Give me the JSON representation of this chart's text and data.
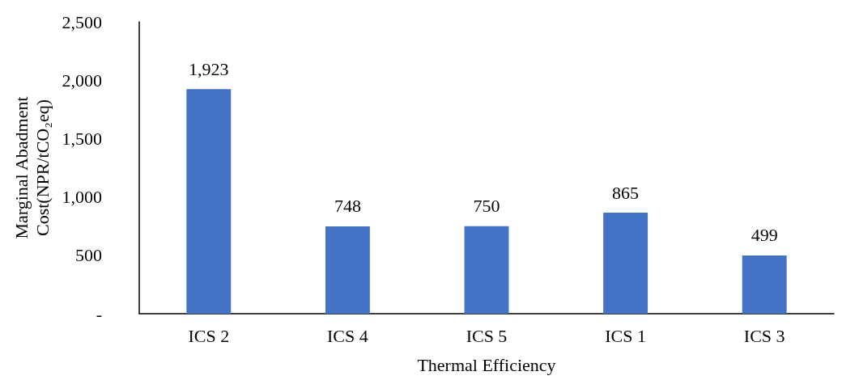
{
  "chart_data": {
    "type": "bar",
    "xlabel": "Thermal Efficiency",
    "ylabel": "Marginal Abadment\nCost(NPR/tCO₂eq)",
    "categories": [
      "ICS 2",
      "ICS 4",
      "ICS 5",
      "ICS 1",
      "ICS 3"
    ],
    "values": [
      1923,
      748,
      750,
      865,
      499
    ],
    "value_labels": [
      "1,923",
      "748",
      "750",
      "865",
      "499"
    ],
    "color": "#4472c4",
    "ylim": [
      0,
      2500
    ],
    "yticks": [
      {
        "value": 0,
        "label": "-"
      },
      {
        "value": 500,
        "label": "500"
      },
      {
        "value": 1000,
        "label": "1,000"
      },
      {
        "value": 1500,
        "label": "1,500"
      },
      {
        "value": 2000,
        "label": "2,000"
      },
      {
        "value": 2500,
        "label": "2,500"
      }
    ],
    "grid": false
  }
}
